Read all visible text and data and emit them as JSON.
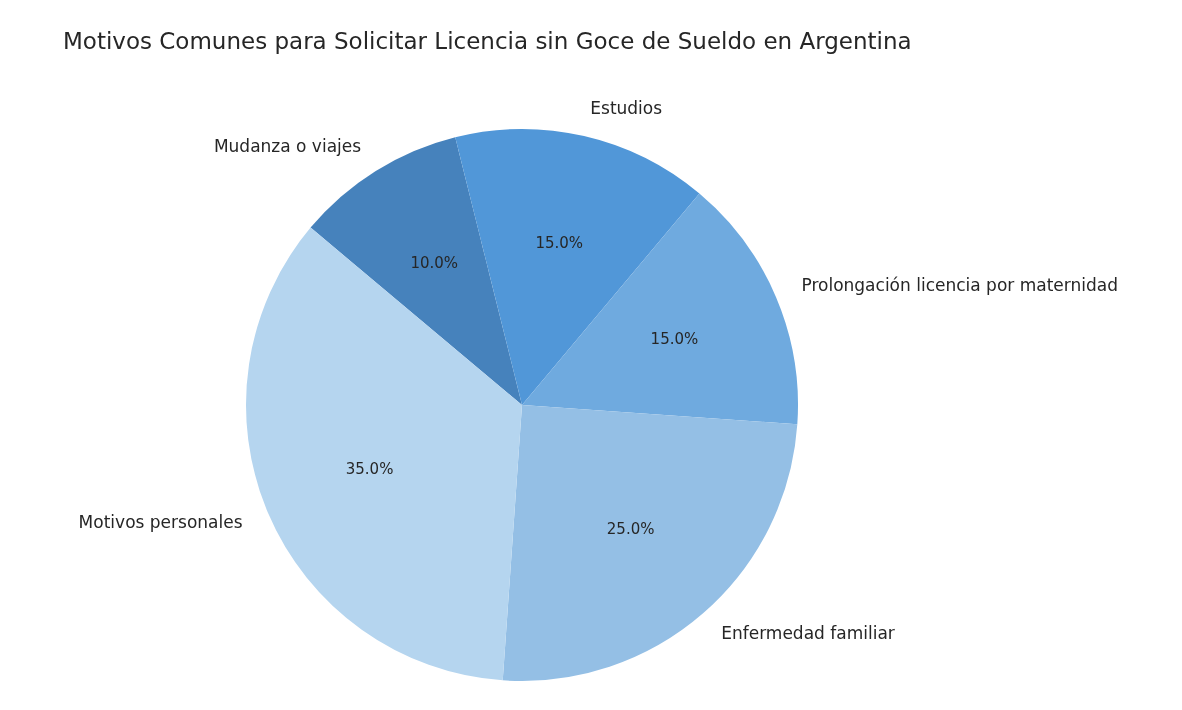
{
  "chart_data": {
    "type": "pie",
    "title": "Motivos Comunes para Solicitar Licencia sin Goce de Sueldo en Argentina",
    "categories": [
      "Motivos personales",
      "Enfermedad familiar",
      "Prolongación licencia por maternidad",
      "Estudios",
      "Mudanza o viajes"
    ],
    "values": [
      35,
      25,
      15,
      15,
      10
    ],
    "value_labels": [
      "35.0%",
      "25.0%",
      "15.0%",
      "15.0%",
      "10.0%"
    ],
    "colors": [
      "#b5d5ef",
      "#94bfe5",
      "#6faadf",
      "#5197d8",
      "#4682bc"
    ],
    "legend": false
  }
}
